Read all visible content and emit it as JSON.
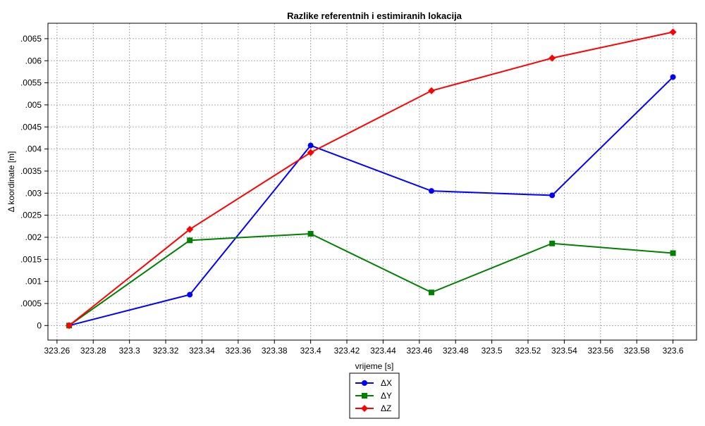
{
  "chart_data": {
    "type": "line",
    "title": "Razlike referentnih i estimiranih lokacija",
    "xlabel": "vrijeme [s]",
    "ylabel": "Δ koordinate [m]",
    "xlim": [
      323.255,
      323.613
    ],
    "ylim": [
      -0.00033,
      0.00685
    ],
    "x_ticks": [
      "323.26",
      "323.28",
      "323.3",
      "323.32",
      "323.34",
      "323.36",
      "323.38",
      "323.4",
      "323.42",
      "323.44",
      "323.46",
      "323.48",
      "323.5",
      "323.52",
      "323.54",
      "323.56",
      "323.58",
      "323.6"
    ],
    "y_ticks": [
      "0",
      ".0005",
      ".001",
      ".0015",
      ".002",
      ".0025",
      ".003",
      ".0035",
      ".004",
      ".0045",
      ".005",
      ".0055",
      ".006",
      ".0065"
    ],
    "grid": true,
    "legend_position": "bottom-center",
    "x": [
      323.2667,
      323.3333,
      323.4,
      323.4667,
      323.5333,
      323.6
    ],
    "series": [
      {
        "name": "ΔX",
        "color": "#0000ff",
        "marker": "circle",
        "values": [
          0.0,
          0.0007,
          0.00408,
          0.00305,
          0.00295,
          0.00563
        ]
      },
      {
        "name": "ΔY",
        "color": "#008000",
        "marker": "square",
        "values": [
          0.0,
          0.00193,
          0.00208,
          0.00075,
          0.00186,
          0.00164
        ]
      },
      {
        "name": "ΔZ",
        "color": "#ff0000",
        "marker": "diamond",
        "values": [
          0.0,
          0.00218,
          0.00392,
          0.00532,
          0.00606,
          0.00665
        ]
      }
    ]
  }
}
